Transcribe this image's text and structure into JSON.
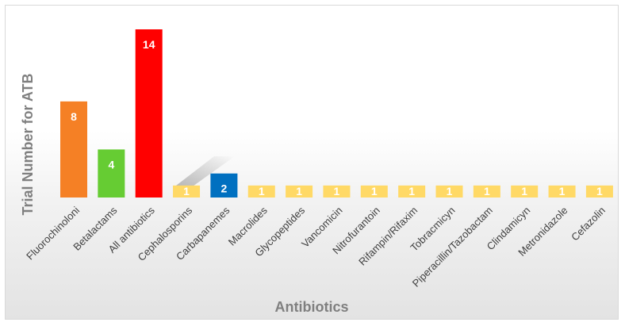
{
  "chart_data": {
    "type": "bar",
    "xlabel": "Antibiotics",
    "ylabel": "Trial Number for ATB",
    "ylim": [
      0,
      14
    ],
    "grid": false,
    "categories": [
      "Fluorochinoloni",
      "Betalactams",
      "All antibiotics",
      "Cephalosporins",
      "Carbapanemes",
      "Macrolides",
      "Glycopeptides",
      "Vancomicin",
      "Nitrofurantoin",
      "Rifampin/Rifaxim",
      "Tobracmicyn",
      "Piperacillin/Tazobactam",
      "Clindamicyn",
      "Metronidazole",
      "Cefazolin"
    ],
    "values": [
      8,
      4,
      14,
      1,
      2,
      1,
      1,
      1,
      1,
      1,
      1,
      1,
      1,
      1,
      1
    ],
    "value_labels": [
      "8",
      "4",
      "14",
      "1",
      "2",
      "1",
      "1",
      "1",
      "1",
      "1",
      "1",
      "1",
      "1",
      "1",
      "1"
    ],
    "colors": [
      "#f58025",
      "#66cc33",
      "#ff0000",
      "#ffd966",
      "#0070c0",
      "#ffd966",
      "#ffd966",
      "#ffd966",
      "#ffd966",
      "#ffd966",
      "#ffd966",
      "#ffd966",
      "#ffd966",
      "#ffd966",
      "#ffd966"
    ]
  }
}
